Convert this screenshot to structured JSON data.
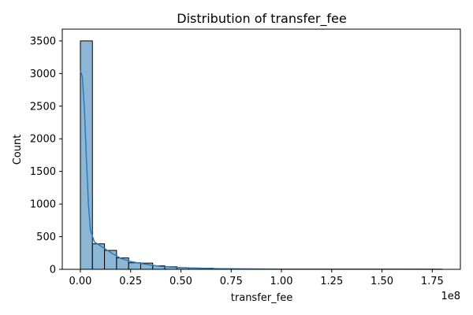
{
  "chart_data": {
    "type": "histogram",
    "title": "Distribution of transfer_fee",
    "xlabel": "transfer_fee",
    "ylabel": "Count",
    "x_offset_label": "1e8",
    "xlim": [
      -0.09,
      1.89
    ],
    "ylim": [
      0,
      3680
    ],
    "bin_start": 0.0,
    "bin_width": 0.06,
    "counts": [
      3500,
      390,
      290,
      175,
      100,
      95,
      55,
      40,
      25,
      20,
      18,
      10,
      8,
      6,
      5,
      4,
      4,
      3,
      3,
      3,
      2,
      2,
      2,
      2,
      2,
      1,
      1,
      1,
      1,
      1
    ],
    "x_ticks": [
      0.0,
      0.25,
      0.5,
      0.75,
      1.0,
      1.25,
      1.5,
      1.75
    ],
    "x_tick_labels": [
      "0.00",
      "0.25",
      "0.50",
      "0.75",
      "1.00",
      "1.25",
      "1.50",
      "1.75"
    ],
    "y_ticks": [
      0,
      500,
      1000,
      1500,
      2000,
      2500,
      3000,
      3500
    ],
    "y_tick_labels": [
      "0",
      "500",
      "1000",
      "1500",
      "2000",
      "2500",
      "3000",
      "3500"
    ],
    "kde": {
      "x": [
        0.0,
        0.01,
        0.02,
        0.03,
        0.04,
        0.05,
        0.07,
        0.1,
        0.13,
        0.16,
        0.2,
        0.25,
        0.3,
        0.35,
        0.4,
        0.5,
        0.6,
        0.7,
        0.8,
        1.0,
        1.2,
        1.4,
        1.6,
        1.8
      ],
      "y": [
        3040,
        2950,
        2450,
        1700,
        1000,
        600,
        420,
        360,
        300,
        240,
        170,
        120,
        90,
        65,
        45,
        25,
        16,
        10,
        7,
        4,
        3,
        2,
        2,
        1
      ]
    },
    "grid": false,
    "bar_color": "#8db6d4",
    "kde_color": "#2b7bba"
  }
}
